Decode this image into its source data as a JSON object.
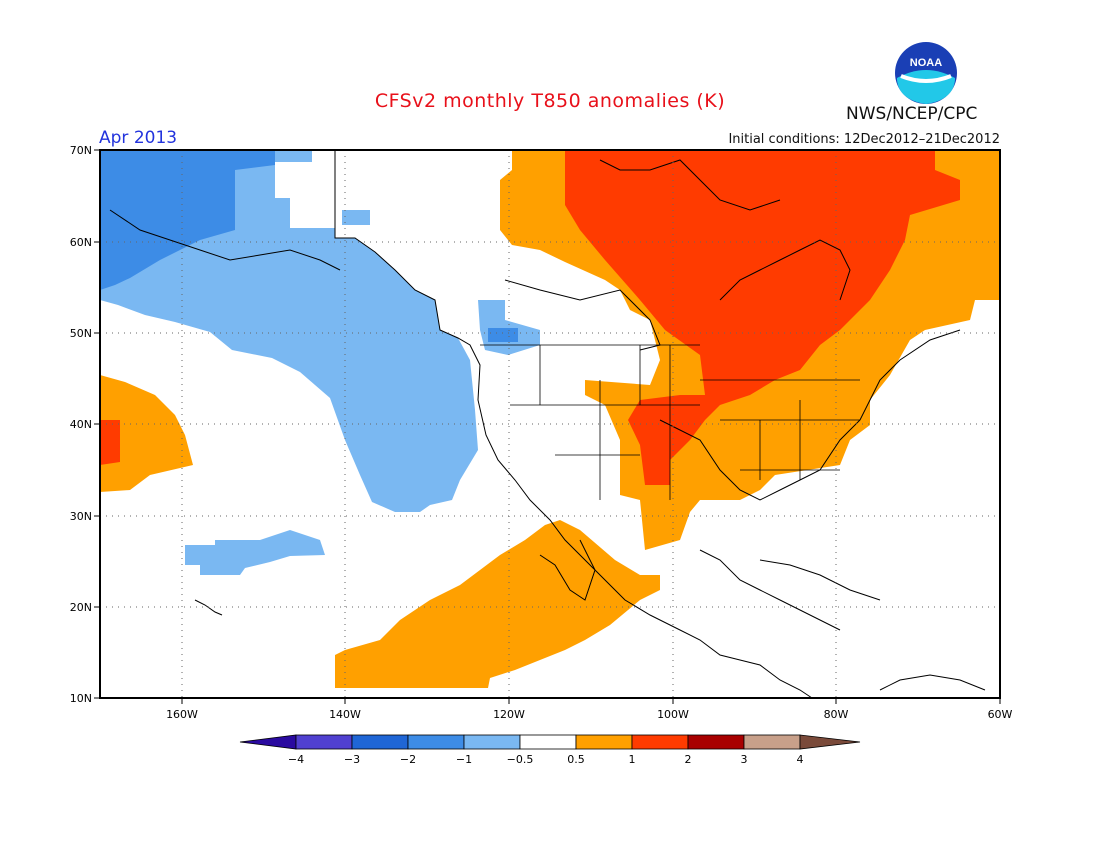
{
  "title": "CFSv2 monthly T850 anomalies (K)",
  "valid_month": "Apr 2013",
  "initial_conditions": "Initial conditions: 12Dec2012–21Dec2012",
  "organization": "NWS/NCEP/CPC",
  "logo_text": "NOAA",
  "axes": {
    "lat_labels": [
      "70N",
      "60N",
      "50N",
      "40N",
      "30N",
      "20N",
      "10N"
    ],
    "lon_labels": [
      "160W",
      "140W",
      "120W",
      "100W",
      "80W",
      "60W"
    ]
  },
  "colorbar": {
    "labels": [
      "−4",
      "−3",
      "−2",
      "−1",
      "−0.5",
      "0.5",
      "1",
      "2",
      "3",
      "4"
    ],
    "colors": [
      "#2a0aa0",
      "#5040d0",
      "#1f66d6",
      "#3d8ce6",
      "#7ab8f2",
      "#ffffff",
      "#ffa000",
      "#ff3b00",
      "#a80000",
      "#c8a08a",
      "#7a4a3a"
    ]
  },
  "colors": {
    "title": "#e8101a",
    "month": "#2233dd",
    "warm_05": "#ffa000",
    "warm_1": "#ff3b00",
    "cool_05": "#7ab8f2",
    "cool_1": "#3d8ce6"
  }
}
